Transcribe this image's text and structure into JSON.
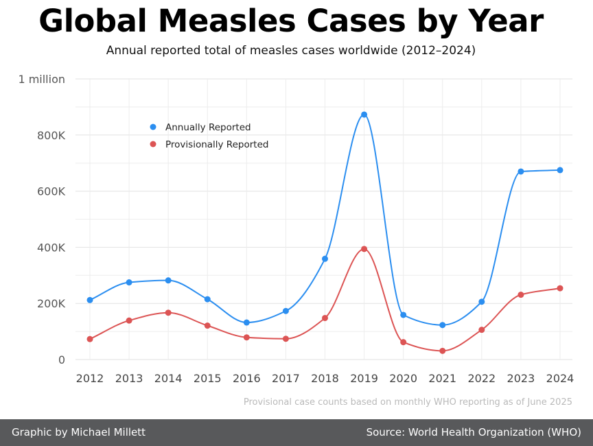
{
  "header": {
    "title": "Global Measles Cases by Year",
    "subtitle": "Annual reported total of measles cases worldwide (2012–2024)"
  },
  "note": "Provisional case counts based on monthly WHO reporting as of June 2025",
  "footer": {
    "credit": "Graphic by Michael Millett",
    "source": "Source: World Health Organization (WHO)"
  },
  "chart_data": {
    "type": "line",
    "title": "Global Measles Cases by Year",
    "subtitle": "Annual reported total of measles cases worldwide (2012–2024)",
    "xlabel": "",
    "ylabel": "",
    "x": [
      "2012",
      "2013",
      "2014",
      "2015",
      "2016",
      "2017",
      "2018",
      "2019",
      "2020",
      "2021",
      "2022",
      "2023",
      "2024"
    ],
    "ylim": [
      0,
      1000000
    ],
    "yticks": [
      0,
      200000,
      400000,
      600000,
      800000,
      1000000
    ],
    "ytick_labels": [
      "0",
      "200K",
      "400K",
      "600K",
      "800K",
      "1 million"
    ],
    "grid": true,
    "legend_position": "top-left",
    "series": [
      {
        "name": "Annually Reported",
        "color": "#2b8ef0",
        "values": [
          212000,
          275000,
          282000,
          215000,
          132000,
          173000,
          359000,
          873000,
          159000,
          123000,
          206000,
          670000,
          675000
        ]
      },
      {
        "name": "Provisionally Reported",
        "color": "#dc5454",
        "values": [
          73000,
          139000,
          167000,
          121000,
          79000,
          74000,
          148000,
          394000,
          62000,
          31000,
          106000,
          231000,
          254000
        ]
      }
    ]
  }
}
